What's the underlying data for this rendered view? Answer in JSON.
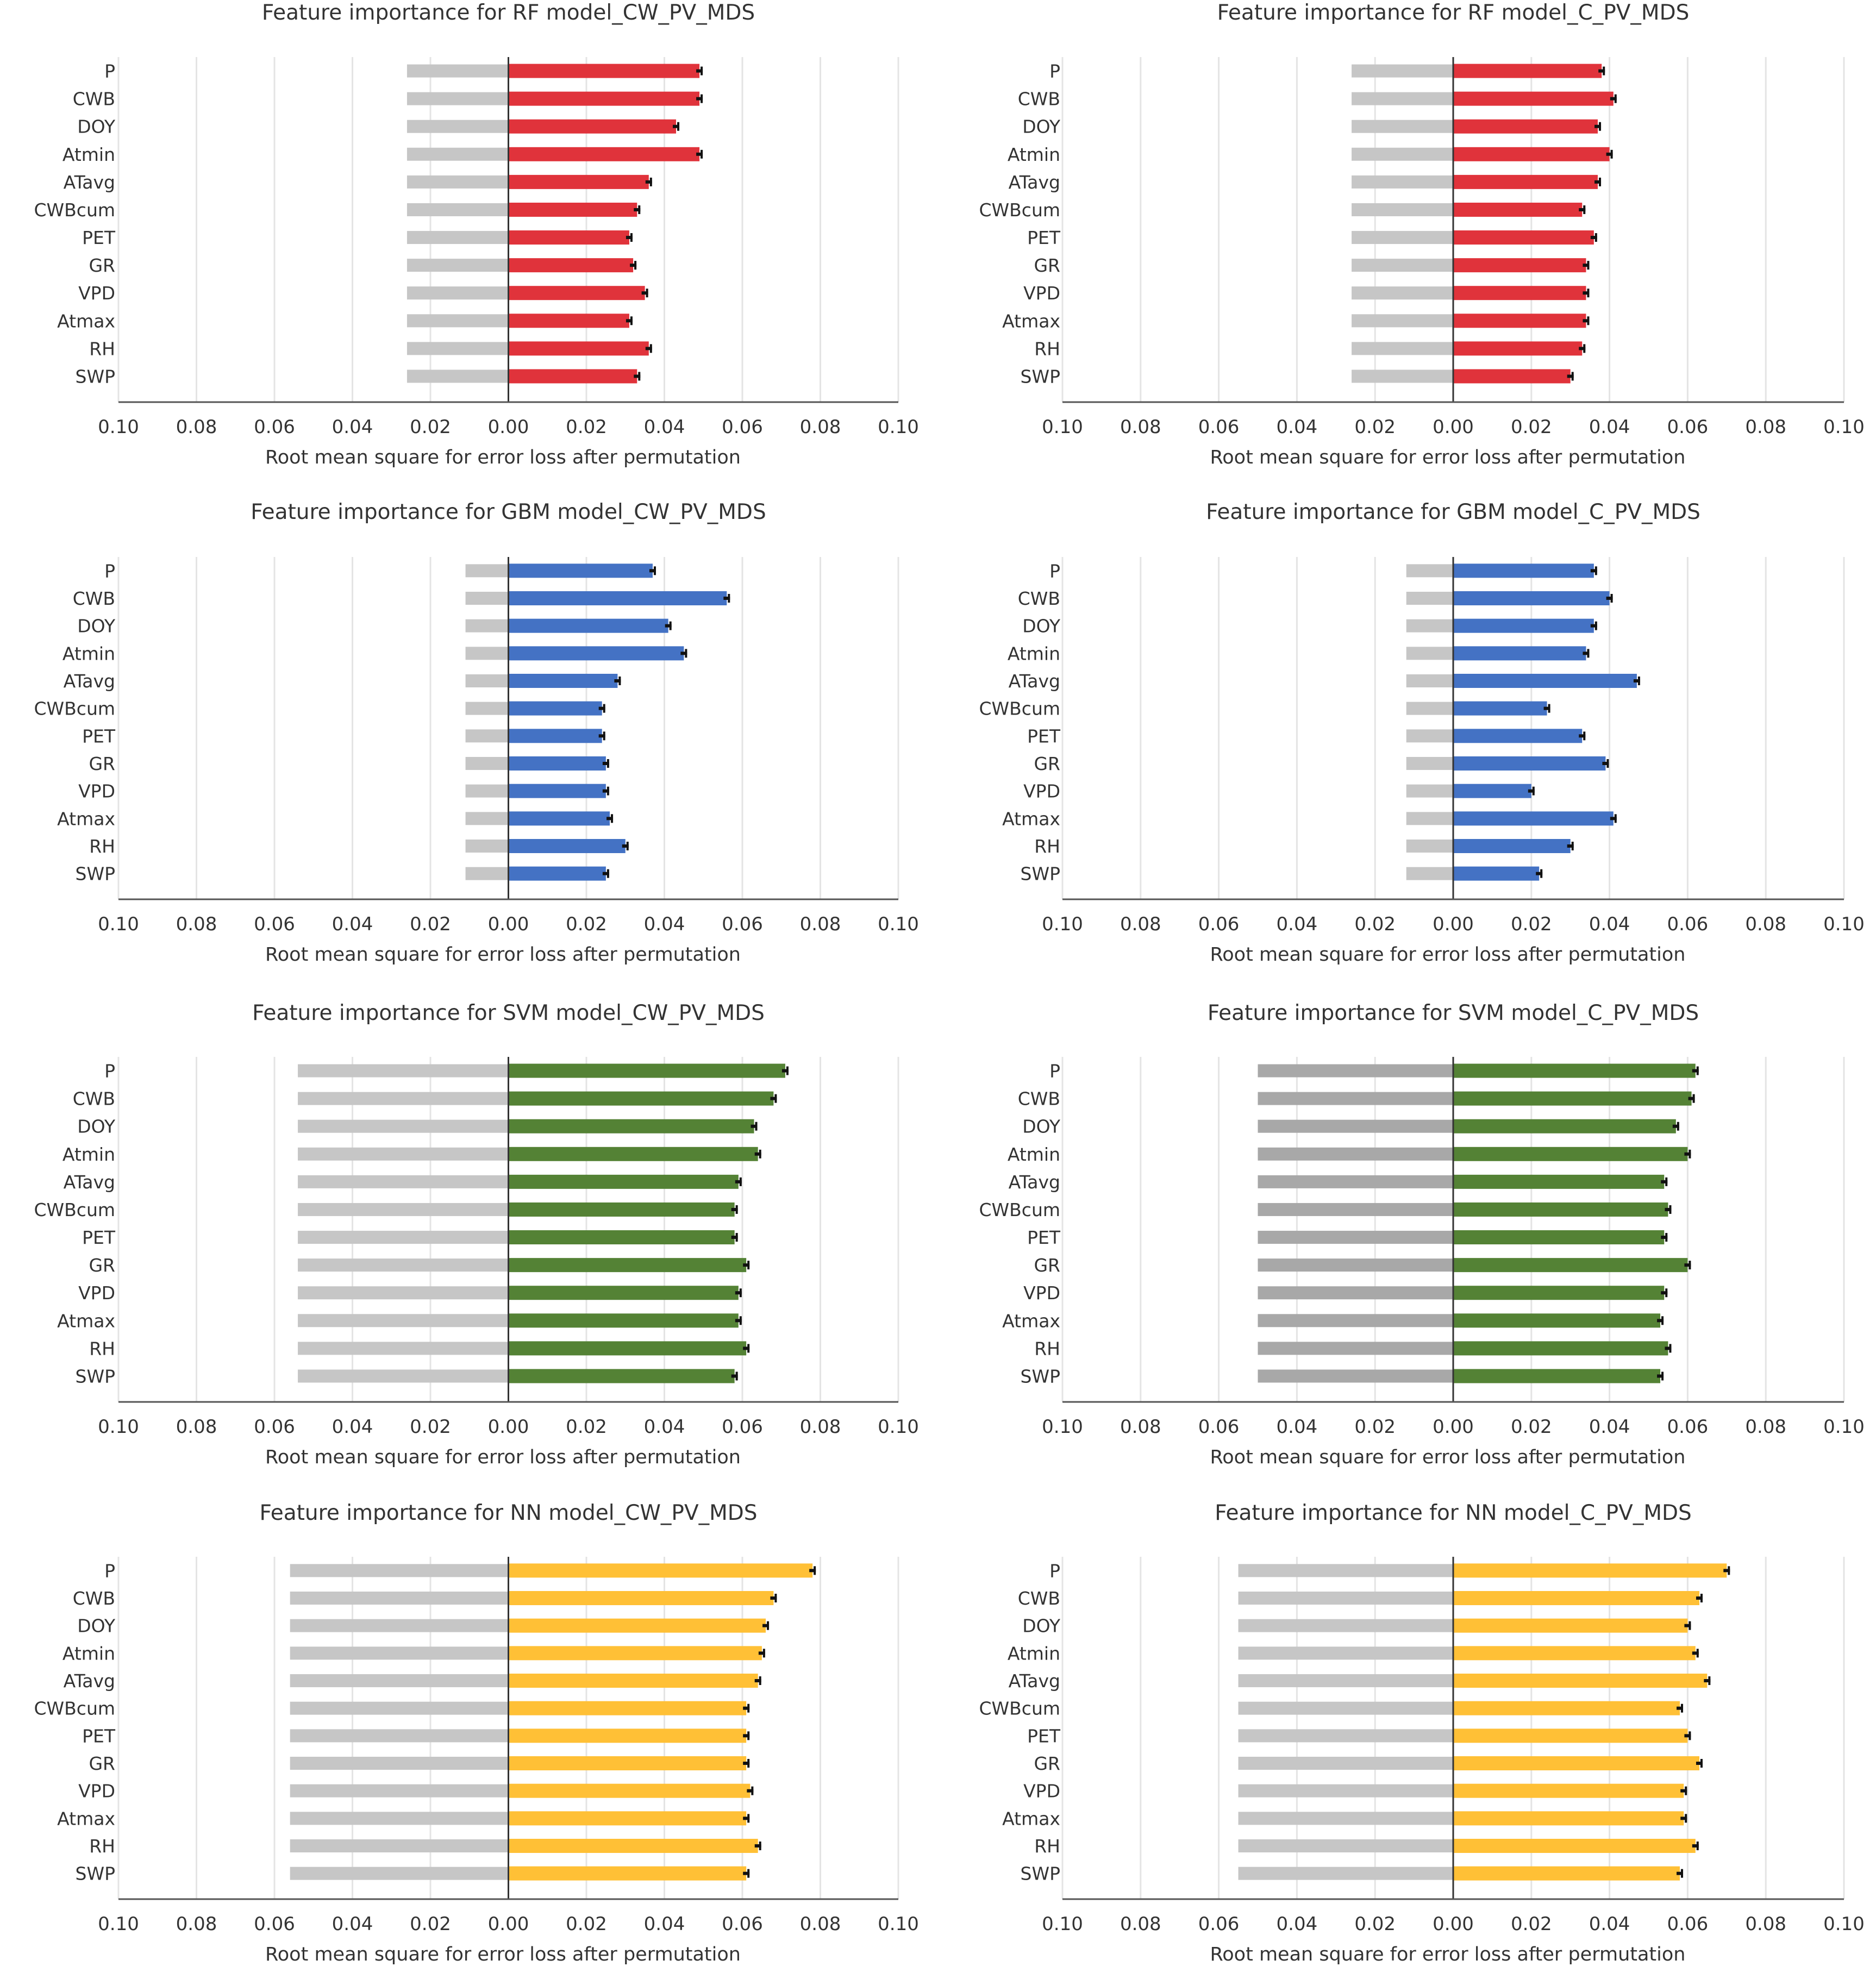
{
  "chart_data": [
    {
      "type": "bar",
      "title": "Feature importance for RF model_CW_PV_MDS",
      "xlabel": "Root mean square for error loss after permutation",
      "ylabel": "",
      "xlim": [
        -0.1,
        0.1
      ],
      "tick_labels": [
        "0.10",
        "0.08",
        "0.06",
        "0.04",
        "0.02",
        "0.00",
        "0.02",
        "0.04",
        "0.06",
        "0.08",
        "0.10"
      ],
      "grid": true,
      "categories": [
        "P",
        "CWB",
        "DOY",
        "Atmin",
        "ATavg",
        "CWBcum",
        "PET",
        "GR",
        "VPD",
        "Atmax",
        "RH",
        "SWP"
      ],
      "baseline_value": 0.026,
      "values": [
        0.049,
        0.049,
        0.043,
        0.049,
        0.036,
        0.033,
        0.031,
        0.032,
        0.035,
        0.031,
        0.036,
        0.033
      ],
      "bar_color": "#e0333b",
      "baseline_color": "#c6c6c6"
    },
    {
      "type": "bar",
      "title": "Feature importance for RF model_C_PV_MDS",
      "xlabel": "Root mean square for error loss after permutation",
      "ylabel": "",
      "xlim": [
        -0.1,
        0.1
      ],
      "tick_labels": [
        "0.10",
        "0.08",
        "0.06",
        "0.04",
        "0.02",
        "0.00",
        "0.02",
        "0.04",
        "0.06",
        "0.08",
        "0.10"
      ],
      "grid": true,
      "categories": [
        "P",
        "CWB",
        "DOY",
        "Atmin",
        "ATavg",
        "CWBcum",
        "PET",
        "GR",
        "VPD",
        "Atmax",
        "RH",
        "SWP"
      ],
      "baseline_value": 0.026,
      "values": [
        0.038,
        0.041,
        0.037,
        0.04,
        0.037,
        0.033,
        0.036,
        0.034,
        0.034,
        0.034,
        0.033,
        0.03
      ],
      "bar_color": "#e0333b",
      "baseline_color": "#c6c6c6"
    },
    {
      "type": "bar",
      "title": "Feature importance for GBM model_CW_PV_MDS",
      "xlabel": "Root mean square for error loss after permutation",
      "ylabel": "",
      "xlim": [
        -0.1,
        0.1
      ],
      "tick_labels": [
        "0.10",
        "0.08",
        "0.06",
        "0.04",
        "0.02",
        "0.00",
        "0.02",
        "0.04",
        "0.06",
        "0.08",
        "0.10"
      ],
      "grid": true,
      "categories": [
        "P",
        "CWB",
        "DOY",
        "Atmin",
        "ATavg",
        "CWBcum",
        "PET",
        "GR",
        "VPD",
        "Atmax",
        "RH",
        "SWP"
      ],
      "baseline_value": 0.011,
      "values": [
        0.037,
        0.056,
        0.041,
        0.045,
        0.028,
        0.024,
        0.024,
        0.025,
        0.025,
        0.026,
        0.03,
        0.025
      ],
      "bar_color": "#4472c4",
      "baseline_color": "#c6c6c6"
    },
    {
      "type": "bar",
      "title": "Feature importance for GBM  model_C_PV_MDS",
      "xlabel": "Root mean square for error loss after permutation",
      "ylabel": "",
      "xlim": [
        -0.1,
        0.1
      ],
      "tick_labels": [
        "0.10",
        "0.08",
        "0.06",
        "0.04",
        "0.02",
        "0.00",
        "0.02",
        "0.04",
        "0.06",
        "0.08",
        "0.10"
      ],
      "grid": true,
      "categories": [
        "P",
        "CWB",
        "DOY",
        "Atmin",
        "ATavg",
        "CWBcum",
        "PET",
        "GR",
        "VPD",
        "Atmax",
        "RH",
        "SWP"
      ],
      "baseline_value": 0.012,
      "values": [
        0.036,
        0.04,
        0.036,
        0.034,
        0.047,
        0.024,
        0.033,
        0.039,
        0.02,
        0.041,
        0.03,
        0.022
      ],
      "bar_color": "#4472c4",
      "baseline_color": "#c6c6c6"
    },
    {
      "type": "bar",
      "title": "Feature importance for SVM model_CW_PV_MDS",
      "xlabel": "Root mean square for error loss after permutation",
      "ylabel": "",
      "xlim": [
        -0.1,
        0.1
      ],
      "tick_labels": [
        "0.10",
        "0.08",
        "0.06",
        "0.04",
        "0.02",
        "0.00",
        "0.02",
        "0.04",
        "0.06",
        "0.08",
        "0.10"
      ],
      "grid": true,
      "categories": [
        "P",
        "CWB",
        "DOY",
        "Atmin",
        "ATavg",
        "CWBcum",
        "PET",
        "GR",
        "VPD",
        "Atmax",
        "RH",
        "SWP"
      ],
      "baseline_value": 0.054,
      "values": [
        0.071,
        0.068,
        0.063,
        0.064,
        0.059,
        0.058,
        0.058,
        0.061,
        0.059,
        0.059,
        0.061,
        0.058
      ],
      "bar_color": "#548235",
      "baseline_color": "#c6c6c6"
    },
    {
      "type": "bar",
      "title": "Feature importance for SVM model_C_PV_MDS",
      "xlabel": "Root mean square for error loss after permutation",
      "ylabel": "",
      "xlim": [
        -0.1,
        0.1
      ],
      "tick_labels": [
        "0.10",
        "0.08",
        "0.06",
        "0.04",
        "0.02",
        "0.00",
        "0.02",
        "0.04",
        "0.06",
        "0.08",
        "0.10"
      ],
      "grid": true,
      "categories": [
        "P",
        "CWB",
        "DOY",
        "Atmin",
        "ATavg",
        "CWBcum",
        "PET",
        "GR",
        "VPD",
        "Atmax",
        "RH",
        "SWP"
      ],
      "baseline_value": 0.05,
      "values": [
        0.062,
        0.061,
        0.057,
        0.06,
        0.054,
        0.055,
        0.054,
        0.06,
        0.054,
        0.053,
        0.055,
        0.053
      ],
      "bar_color": "#548235",
      "baseline_color": "#a8a8a8"
    },
    {
      "type": "bar",
      "title": "Feature importance for NN model_CW_PV_MDS",
      "xlabel": "Root mean square for error loss after permutation",
      "ylabel": "",
      "xlim": [
        -0.1,
        0.1
      ],
      "tick_labels": [
        "0.10",
        "0.08",
        "0.06",
        "0.04",
        "0.02",
        "0.00",
        "0.02",
        "0.04",
        "0.06",
        "0.08",
        "0.10"
      ],
      "grid": true,
      "categories": [
        "P",
        "CWB",
        "DOY",
        "Atmin",
        "ATavg",
        "CWBcum",
        "PET",
        "GR",
        "VPD",
        "Atmax",
        "RH",
        "SWP"
      ],
      "baseline_value": 0.056,
      "values": [
        0.078,
        0.068,
        0.066,
        0.065,
        0.064,
        0.061,
        0.061,
        0.061,
        0.062,
        0.061,
        0.064,
        0.061
      ],
      "bar_color": "#ffc036",
      "baseline_color": "#c6c6c6"
    },
    {
      "type": "bar",
      "title": "Feature importance for NN model_C_PV_MDS",
      "xlabel": "Root mean square for error loss after permutation",
      "ylabel": "",
      "xlim": [
        -0.1,
        0.1
      ],
      "tick_labels": [
        "0.10",
        "0.08",
        "0.06",
        "0.04",
        "0.02",
        "0.00",
        "0.02",
        "0.04",
        "0.06",
        "0.08",
        "0.10"
      ],
      "grid": true,
      "categories": [
        "P",
        "CWB",
        "DOY",
        "Atmin",
        "ATavg",
        "CWBcum",
        "PET",
        "GR",
        "VPD",
        "Atmax",
        "RH",
        "SWP"
      ],
      "baseline_value": 0.055,
      "values": [
        0.07,
        0.063,
        0.06,
        0.062,
        0.065,
        0.058,
        0.06,
        0.063,
        0.059,
        0.059,
        0.062,
        0.058
      ],
      "bar_color": "#ffc036",
      "baseline_color": "#c6c6c6"
    }
  ]
}
